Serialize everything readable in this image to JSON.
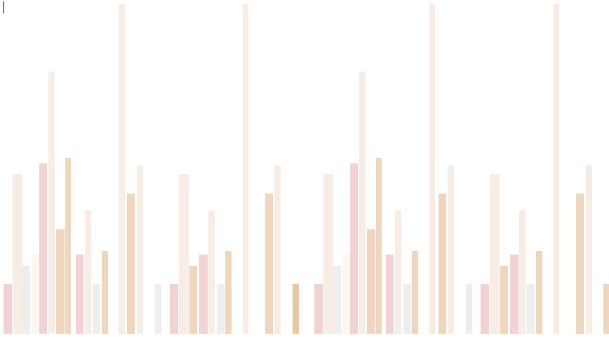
{
  "palette": {
    "pink": "#f3d2d3",
    "peach": "#f8ede4",
    "tan": "#efd6bd",
    "grey": "#eeeeee",
    "cream": "#fdf8ef",
    "amber": "#eac9a1",
    "cursor": "#000000"
  },
  "bars": [
    {
      "color": "pink",
      "level": 0.15
    },
    {
      "color": "peach",
      "level": 0.485
    },
    {
      "color": "grey",
      "level": 0.205
    },
    {
      "color": "cream",
      "level": 0.24
    },
    {
      "color": "pink",
      "level": 0.515
    },
    {
      "color": "peach",
      "level": 0.795
    },
    {
      "color": "tan",
      "level": 0.317
    },
    {
      "color": "tan",
      "level": 0.532
    },
    {
      "color": "pink",
      "level": 0.24
    },
    {
      "color": "peach",
      "level": 0.374
    },
    {
      "color": "grey",
      "level": 0.15
    },
    {
      "color": "tan",
      "level": 0.25
    },
    {
      "color": "peach",
      "level": 1.0
    },
    {
      "color": "tan",
      "level": 0.425
    },
    {
      "color": "peach",
      "level": 0.51
    },
    {
      "color": "grey",
      "level": 0.15
    },
    {
      "color": "pink",
      "level": 0.15
    },
    {
      "color": "peach",
      "level": 0.485
    },
    {
      "color": "tan",
      "level": 0.205
    },
    {
      "color": "pink",
      "level": 0.24
    },
    {
      "color": "peach",
      "level": 0.374
    },
    {
      "color": "grey",
      "level": 0.15
    },
    {
      "color": "tan",
      "level": 0.25
    },
    {
      "color": "peach",
      "level": 1.0
    },
    {
      "color": "tan",
      "level": 0.425
    },
    {
      "color": "peach",
      "level": 0.51
    },
    {
      "color": "amber",
      "level": 0.15
    },
    {
      "color": "pink",
      "level": 0.15
    },
    {
      "color": "peach",
      "level": 0.485
    },
    {
      "color": "grey",
      "level": 0.205
    },
    {
      "color": "cream",
      "level": 0.24
    },
    {
      "color": "pink",
      "level": 0.515
    },
    {
      "color": "peach",
      "level": 0.795
    },
    {
      "color": "tan",
      "level": 0.317
    },
    {
      "color": "tan",
      "level": 0.532
    },
    {
      "color": "pink",
      "level": 0.24
    },
    {
      "color": "peach",
      "level": 0.374
    },
    {
      "color": "grey",
      "level": 0.15
    },
    {
      "color": "tan",
      "level": 0.25
    },
    {
      "color": "peach",
      "level": 1.0
    },
    {
      "color": "tan",
      "level": 0.425
    },
    {
      "color": "peach",
      "level": 0.51
    },
    {
      "color": "grey",
      "level": 0.15
    },
    {
      "color": "pink",
      "level": 0.15
    },
    {
      "color": "peach",
      "level": 0.485
    },
    {
      "color": "tan",
      "level": 0.205
    },
    {
      "color": "pink",
      "level": 0.24
    },
    {
      "color": "peach",
      "level": 0.374
    },
    {
      "color": "grey",
      "level": 0.15
    },
    {
      "color": "tan",
      "level": 0.25
    },
    {
      "color": "peach",
      "level": 1.0
    },
    {
      "color": "tan",
      "level": 0.425
    },
    {
      "color": "peach",
      "level": 0.51
    },
    {
      "color": "tan",
      "level": 0.15
    }
  ]
}
